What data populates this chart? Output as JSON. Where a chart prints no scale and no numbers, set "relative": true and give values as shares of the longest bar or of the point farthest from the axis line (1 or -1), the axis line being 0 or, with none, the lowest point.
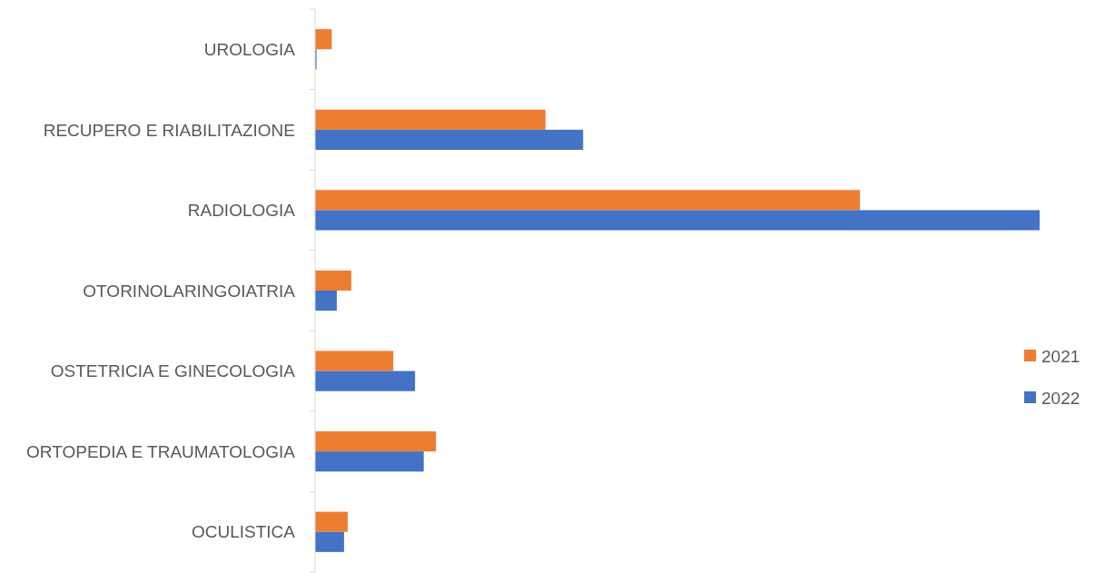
{
  "chart_data": {
    "type": "bar",
    "orientation": "horizontal",
    "relative": true,
    "categories": [
      "UROLOGIA",
      "RECUPERO E RIABILITAZIONE",
      "RADIOLOGIA",
      "OTORINOLARINGOIATRIA",
      "OSTETRICIA E GINECOLOGIA",
      "ORTOPEDIA E TRAUMATOLOGIA",
      "OCULISTICA"
    ],
    "series": [
      {
        "name": "2021",
        "color": "#ed7d31",
        "values": [
          0.023,
          0.318,
          0.752,
          0.05,
          0.108,
          0.167,
          0.045
        ]
      },
      {
        "name": "2022",
        "color": "#4472c4",
        "values": [
          0.002,
          0.37,
          1,
          0.03,
          0.138,
          0.15,
          0.04
        ]
      }
    ],
    "legend": "right"
  }
}
